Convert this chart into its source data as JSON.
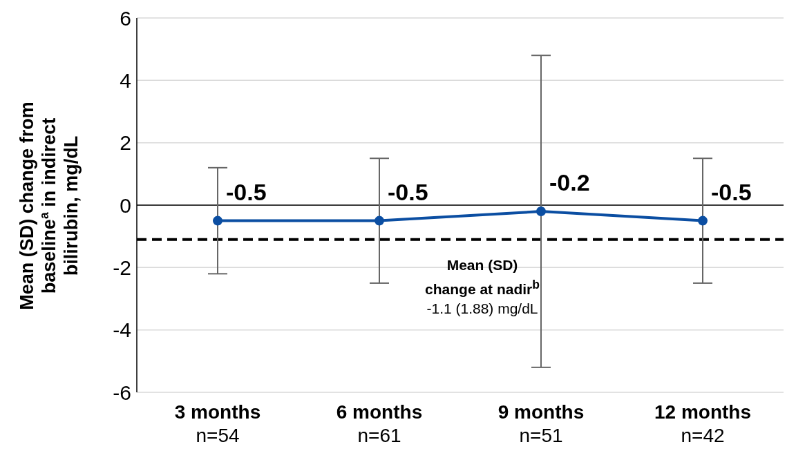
{
  "chart_data": {
    "type": "line",
    "ylabel": "Mean (SD) change from baseline$^{a}$ in indirect bilirubin, mg/dL",
    "categories": [
      "3 months\nn=54",
      "6 months\nn=61",
      "9 months\nn=51",
      "12 months\nn=42"
    ],
    "series": [
      {
        "color": "#0b4ea2",
        "values": [
          -0.5,
          -0.5,
          -0.2,
          -0.5
        ],
        "errors": [
          1.7,
          2.0,
          5.0,
          2.0
        ]
      }
    ],
    "ylim": [
      -6,
      6
    ],
    "yticks": [
      -6,
      -4,
      -2,
      0,
      2,
      4,
      6
    ],
    "grid": "y",
    "marker": "circle",
    "line_style": "solid",
    "data_labels": true,
    "legend": false,
    "ref_lines": [
      {
        "axis": "y",
        "value": 0,
        "color": "#000000",
        "line_style": "solid"
      },
      {
        "axis": "y",
        "value": -1.1,
        "color": "#000000",
        "line_style": "dashed"
      }
    ],
    "annotations": [
      "Mean (SD)\nchange at nadir$^{b}$\n-1.1 (1.88) mg/dL"
    ]
  }
}
